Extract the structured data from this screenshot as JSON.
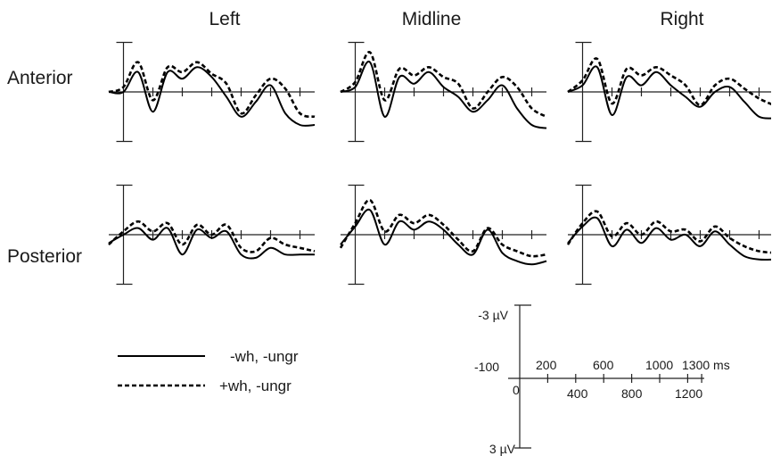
{
  "chart_data": {
    "type": "line",
    "columns": [
      "Left",
      "Midline",
      "Right"
    ],
    "rows": [
      "Anterior",
      "Posterior"
    ],
    "x_unit": "ms",
    "y_unit": "µV",
    "x_range": [
      -100,
      1300
    ],
    "y_range": [
      -3,
      3
    ],
    "y_negative_up": true,
    "series": [
      {
        "name": "-wh, -ungr",
        "style": "solid"
      },
      {
        "name": "+wh, -ungr",
        "style": "dashed"
      }
    ],
    "x": [
      -100,
      0,
      100,
      200,
      300,
      400,
      500,
      600,
      700,
      800,
      900,
      1000,
      1100,
      1200,
      1300
    ],
    "panels": [
      {
        "row": "Anterior",
        "column": "Left",
        "series": [
          [
            0.0,
            0.0,
            1.2,
            -1.2,
            1.2,
            0.8,
            1.5,
            0.9,
            -0.3,
            -1.5,
            -0.6,
            0.4,
            -1.3,
            -2.0,
            -2.0
          ],
          [
            0.0,
            0.3,
            1.8,
            -0.5,
            1.5,
            1.2,
            1.8,
            1.1,
            0.5,
            -1.3,
            -0.2,
            0.8,
            0.2,
            -1.3,
            -1.5
          ]
        ]
      },
      {
        "row": "Anterior",
        "column": "Midline",
        "series": [
          [
            0.0,
            0.3,
            1.8,
            -1.5,
            0.9,
            0.5,
            1.2,
            0.3,
            -0.3,
            -1.2,
            -0.5,
            0.4,
            -1.0,
            -2.0,
            -2.2
          ],
          [
            0.0,
            0.6,
            2.4,
            -0.5,
            1.4,
            1.0,
            1.5,
            0.9,
            0.5,
            -1.0,
            0.0,
            0.9,
            0.3,
            -1.0,
            -1.5
          ]
        ]
      },
      {
        "row": "Anterior",
        "column": "Right",
        "series": [
          [
            0.0,
            0.4,
            1.5,
            -1.4,
            0.9,
            0.4,
            1.2,
            0.4,
            -0.3,
            -0.9,
            0.0,
            0.3,
            -0.6,
            -1.5,
            -1.6
          ],
          [
            0.0,
            0.7,
            2.0,
            -0.7,
            1.4,
            1.0,
            1.5,
            1.0,
            0.4,
            -0.8,
            0.4,
            0.8,
            0.2,
            -0.4,
            -0.8
          ]
        ]
      },
      {
        "row": "Posterior",
        "column": "Left",
        "series": [
          [
            -0.5,
            0.0,
            0.4,
            -0.3,
            0.4,
            -1.2,
            0.3,
            -0.2,
            0.2,
            -1.2,
            -1.4,
            -0.8,
            -1.2,
            -1.2,
            -1.2
          ],
          [
            -0.6,
            0.2,
            0.8,
            0.2,
            0.7,
            -0.6,
            0.6,
            0.0,
            0.6,
            -0.8,
            -1.0,
            -0.2,
            -0.6,
            -0.8,
            -1.0
          ]
        ]
      },
      {
        "row": "Posterior",
        "column": "Midline",
        "series": [
          [
            -0.6,
            0.5,
            1.5,
            -0.6,
            0.8,
            0.3,
            0.8,
            0.3,
            -0.6,
            -1.2,
            0.3,
            -1.1,
            -1.6,
            -1.8,
            -1.6
          ],
          [
            -0.8,
            0.7,
            2.1,
            0.2,
            1.2,
            0.7,
            1.2,
            0.6,
            -0.3,
            -1.0,
            0.4,
            -0.6,
            -1.0,
            -1.3,
            -1.2
          ]
        ]
      },
      {
        "row": "Posterior",
        "column": "Right",
        "series": [
          [
            -0.5,
            0.5,
            1.0,
            -0.7,
            0.3,
            -0.5,
            0.4,
            -0.3,
            0.0,
            -0.7,
            0.2,
            -0.6,
            -1.3,
            -1.5,
            -1.5
          ],
          [
            -0.6,
            0.7,
            1.4,
            -0.1,
            0.7,
            0.0,
            0.8,
            0.2,
            0.3,
            -0.4,
            0.5,
            -0.2,
            -0.7,
            -1.0,
            -1.1
          ]
        ]
      }
    ],
    "legend": [
      {
        "label": "-wh, -ungr",
        "style": "solid"
      },
      {
        "label": "+wh, -ungr",
        "style": "dashed"
      }
    ],
    "scale_bar": {
      "y_top_label": "-3 µV",
      "y_bottom_label": "3 µV",
      "x_left_label": "-100",
      "x_zero_label": "0",
      "x_above_labels": [
        "200",
        "600",
        "1000",
        "1300 ms"
      ],
      "x_below_labels": [
        "400",
        "800",
        "1200"
      ]
    }
  }
}
